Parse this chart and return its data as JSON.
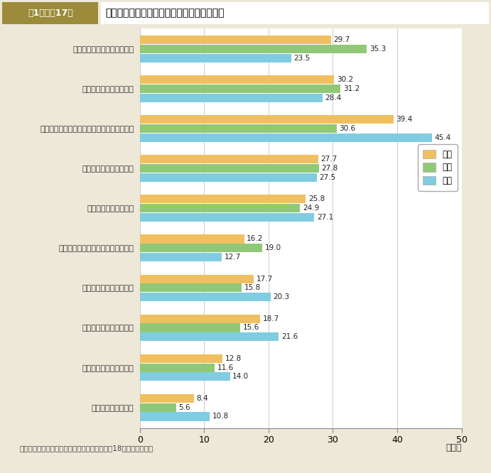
{
  "header_label": "第1－特－17図",
  "header_text": "性別ボランティア活動の種類別平均行動日数",
  "categories": [
    "自然や環境を守るための活動",
    "高齢者を対象とした活動",
    "スポーツ・文化・芸術・学術に関係した活動",
    "障害者を対象とした活動",
    "子供を対象とした活動",
    "健康や医療サービスに関係した活動",
    "国際協力に関係した活動",
    "安全な生活のための活動",
    "まちづくりのための活動",
    "災害に関係した活動"
  ],
  "series": {
    "総数": [
      29.7,
      30.2,
      39.4,
      27.7,
      25.8,
      16.2,
      17.7,
      18.7,
      12.8,
      8.4
    ],
    "女性": [
      35.3,
      31.2,
      30.6,
      27.8,
      24.9,
      19.0,
      15.8,
      15.6,
      11.6,
      5.6
    ],
    "男性": [
      23.5,
      28.4,
      45.4,
      27.5,
      27.1,
      12.7,
      20.3,
      21.6,
      14.0,
      10.8
    ]
  },
  "colors": {
    "総数": "#F0C060",
    "女性": "#90C878",
    "男性": "#80CCE0"
  },
  "legend_order": [
    "総数",
    "女性",
    "男性"
  ],
  "xlim": [
    0,
    50
  ],
  "xticks": [
    0,
    10,
    20,
    30,
    40,
    50
  ],
  "xlabel_suffix": "（日）",
  "bar_height": 0.23,
  "background_color": "#EDE8D8",
  "plot_bg_color": "#FFFFFF",
  "header_bg_color": "#9B8B3A",
  "header_text_color": "#333333",
  "footer_text": "（備考）　総務省「社会生活基本調査」（平成18年）より作成。"
}
